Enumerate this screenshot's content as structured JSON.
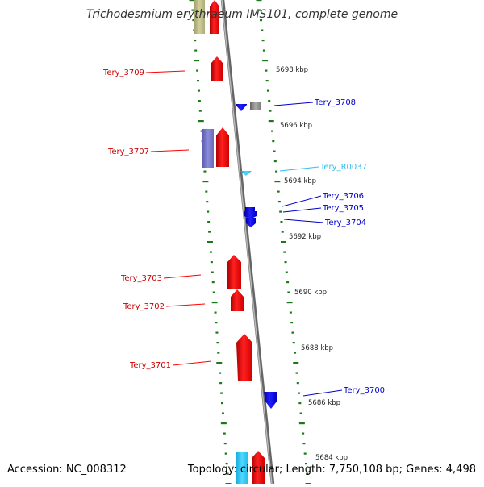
{
  "title": "Trichodesmium erythraeum IMS101, complete genome",
  "footer": {
    "accession": "Accession: NC_008312",
    "topology": "Topology: circular; Length: 7,750,108 bp; Genes: 4,498"
  },
  "colors": {
    "forward_gene": "#ff0000",
    "reverse_gene": "#0000ff",
    "rna": "#33ccff",
    "tick": "#1a7a1a",
    "backbone": "#888888"
  },
  "kbp_labels": [
    "5698 kbp",
    "5696 kbp",
    "5694 kbp",
    "5692 kbp",
    "5690 kbp",
    "5688 kbp",
    "5686 kbp",
    "5684 kbp"
  ],
  "left_genes": [
    "Tery_3709",
    "Tery_3707",
    "Tery_3703",
    "Tery_3702",
    "Tery_3701"
  ],
  "right_genes": [
    "Tery_3708",
    "Tery_R0037",
    "Tery_3706",
    "Tery_3705",
    "Tery_3704",
    "Tery_3700"
  ]
}
